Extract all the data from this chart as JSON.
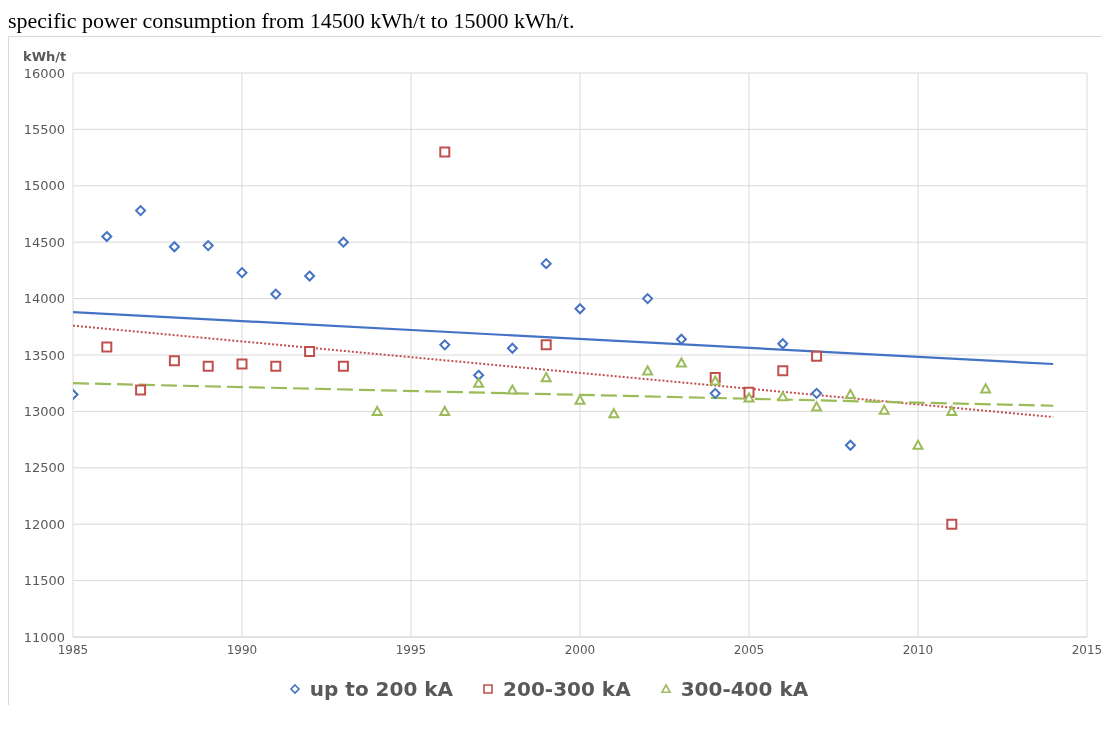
{
  "chart_data": {
    "type": "scatter",
    "ylabel": "kWh/t",
    "annotations": [
      "specific power consumption from 14500 kWh/t to 15000 kWh/t."
    ],
    "xlim": [
      1985,
      2015
    ],
    "xticks": [
      1985,
      1990,
      1995,
      2000,
      2005,
      2010,
      2015
    ],
    "ylim": [
      11000,
      16000
    ],
    "yticks": [
      11000,
      11500,
      12000,
      12500,
      13000,
      13500,
      14000,
      14500,
      15000,
      15500,
      16000
    ],
    "grid": true,
    "legend": "bottom",
    "series": [
      {
        "name": "up to 200 kA",
        "color": "#4472c4",
        "marker": "diamond",
        "x": [
          1985,
          1986,
          1987,
          1988,
          1989,
          1990,
          1991,
          1992,
          1993,
          1996,
          1997,
          1998,
          1999,
          2000,
          2002,
          2003,
          2004,
          2006,
          2007,
          2008
        ],
        "values": [
          13150,
          14550,
          14780,
          14460,
          14470,
          14230,
          14040,
          14200,
          14500,
          13590,
          13320,
          13560,
          14310,
          13910,
          14000,
          13640,
          13160,
          13600,
          13160,
          12700
        ]
      },
      {
        "name": "200-300 kA",
        "color": "#c0504d",
        "marker": "square",
        "x": [
          1986,
          1987,
          1988,
          1989,
          1990,
          1991,
          1992,
          1993,
          1996,
          1999,
          2004,
          2005,
          2006,
          2007,
          2011
        ],
        "values": [
          13570,
          13190,
          13450,
          13400,
          13420,
          13400,
          13530,
          13400,
          15300,
          13590,
          13300,
          13170,
          13360,
          13490,
          12000
        ]
      },
      {
        "name": "300-400 kA",
        "color": "#9bbb59",
        "marker": "triangle",
        "x": [
          1994,
          1996,
          1997,
          1998,
          1999,
          2000,
          2001,
          2002,
          2003,
          2004,
          2005,
          2006,
          2007,
          2008,
          2009,
          2010,
          2011,
          2012
        ],
        "values": [
          13000,
          13000,
          13250,
          13190,
          13300,
          13100,
          12980,
          13360,
          13430,
          13270,
          13120,
          13130,
          13040,
          13150,
          13010,
          12700,
          13000,
          13200
        ]
      },
      {
        "type": "line",
        "color": "#4472c4",
        "line_style": "solid",
        "x": [
          1985,
          2014
        ],
        "values": [
          13880,
          13420
        ]
      },
      {
        "type": "line",
        "color": "#c0504d",
        "line_style": "dotted",
        "x": [
          1985,
          2014
        ],
        "values": [
          13760,
          12950
        ]
      },
      {
        "type": "line",
        "color": "#9bbb59",
        "line_style": "dashed",
        "x": [
          1985,
          2014
        ],
        "values": [
          13250,
          13050
        ]
      }
    ]
  }
}
